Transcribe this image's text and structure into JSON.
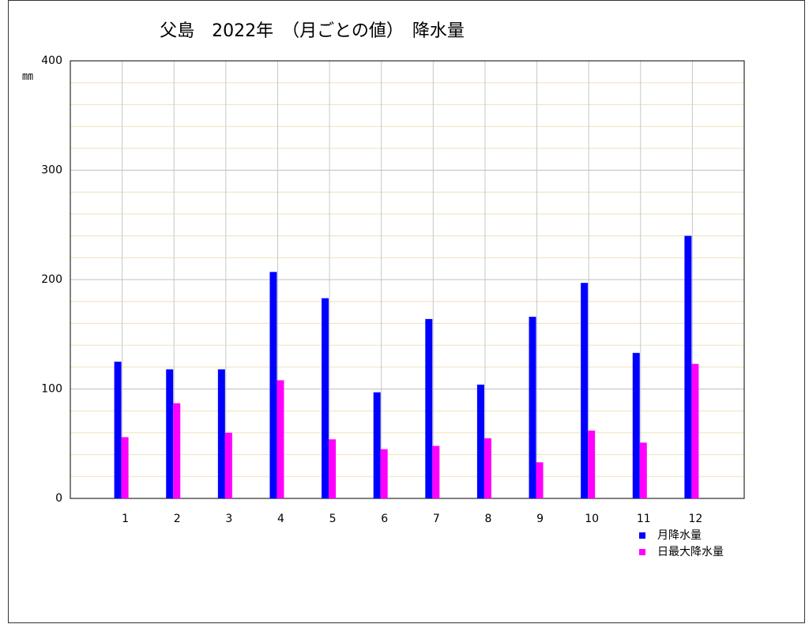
{
  "chart_data": {
    "type": "bar",
    "title": "父島　2022年　（月ごとの値）　降水量",
    "y_unit": "㎜",
    "categories": [
      "1",
      "2",
      "3",
      "4",
      "5",
      "6",
      "7",
      "8",
      "9",
      "10",
      "11",
      "12"
    ],
    "series": [
      {
        "name": "月降水量",
        "color": "#0000ff",
        "values": [
          125,
          118,
          118,
          207,
          183,
          97,
          164,
          104,
          166,
          197,
          133,
          240
        ]
      },
      {
        "name": "日最大降水量",
        "color": "#ff00ff",
        "values": [
          56,
          87,
          60,
          108,
          54,
          45,
          48,
          55,
          33,
          62,
          51,
          123
        ]
      }
    ],
    "ylim": [
      0,
      400
    ],
    "yticks": [
      0,
      100,
      200,
      300,
      400
    ],
    "minor_yticks": [
      20,
      40,
      60,
      80,
      120,
      140,
      160,
      180,
      220,
      240,
      260,
      280,
      320,
      340,
      360,
      380
    ],
    "grid": true,
    "legend": "bottom-right"
  }
}
